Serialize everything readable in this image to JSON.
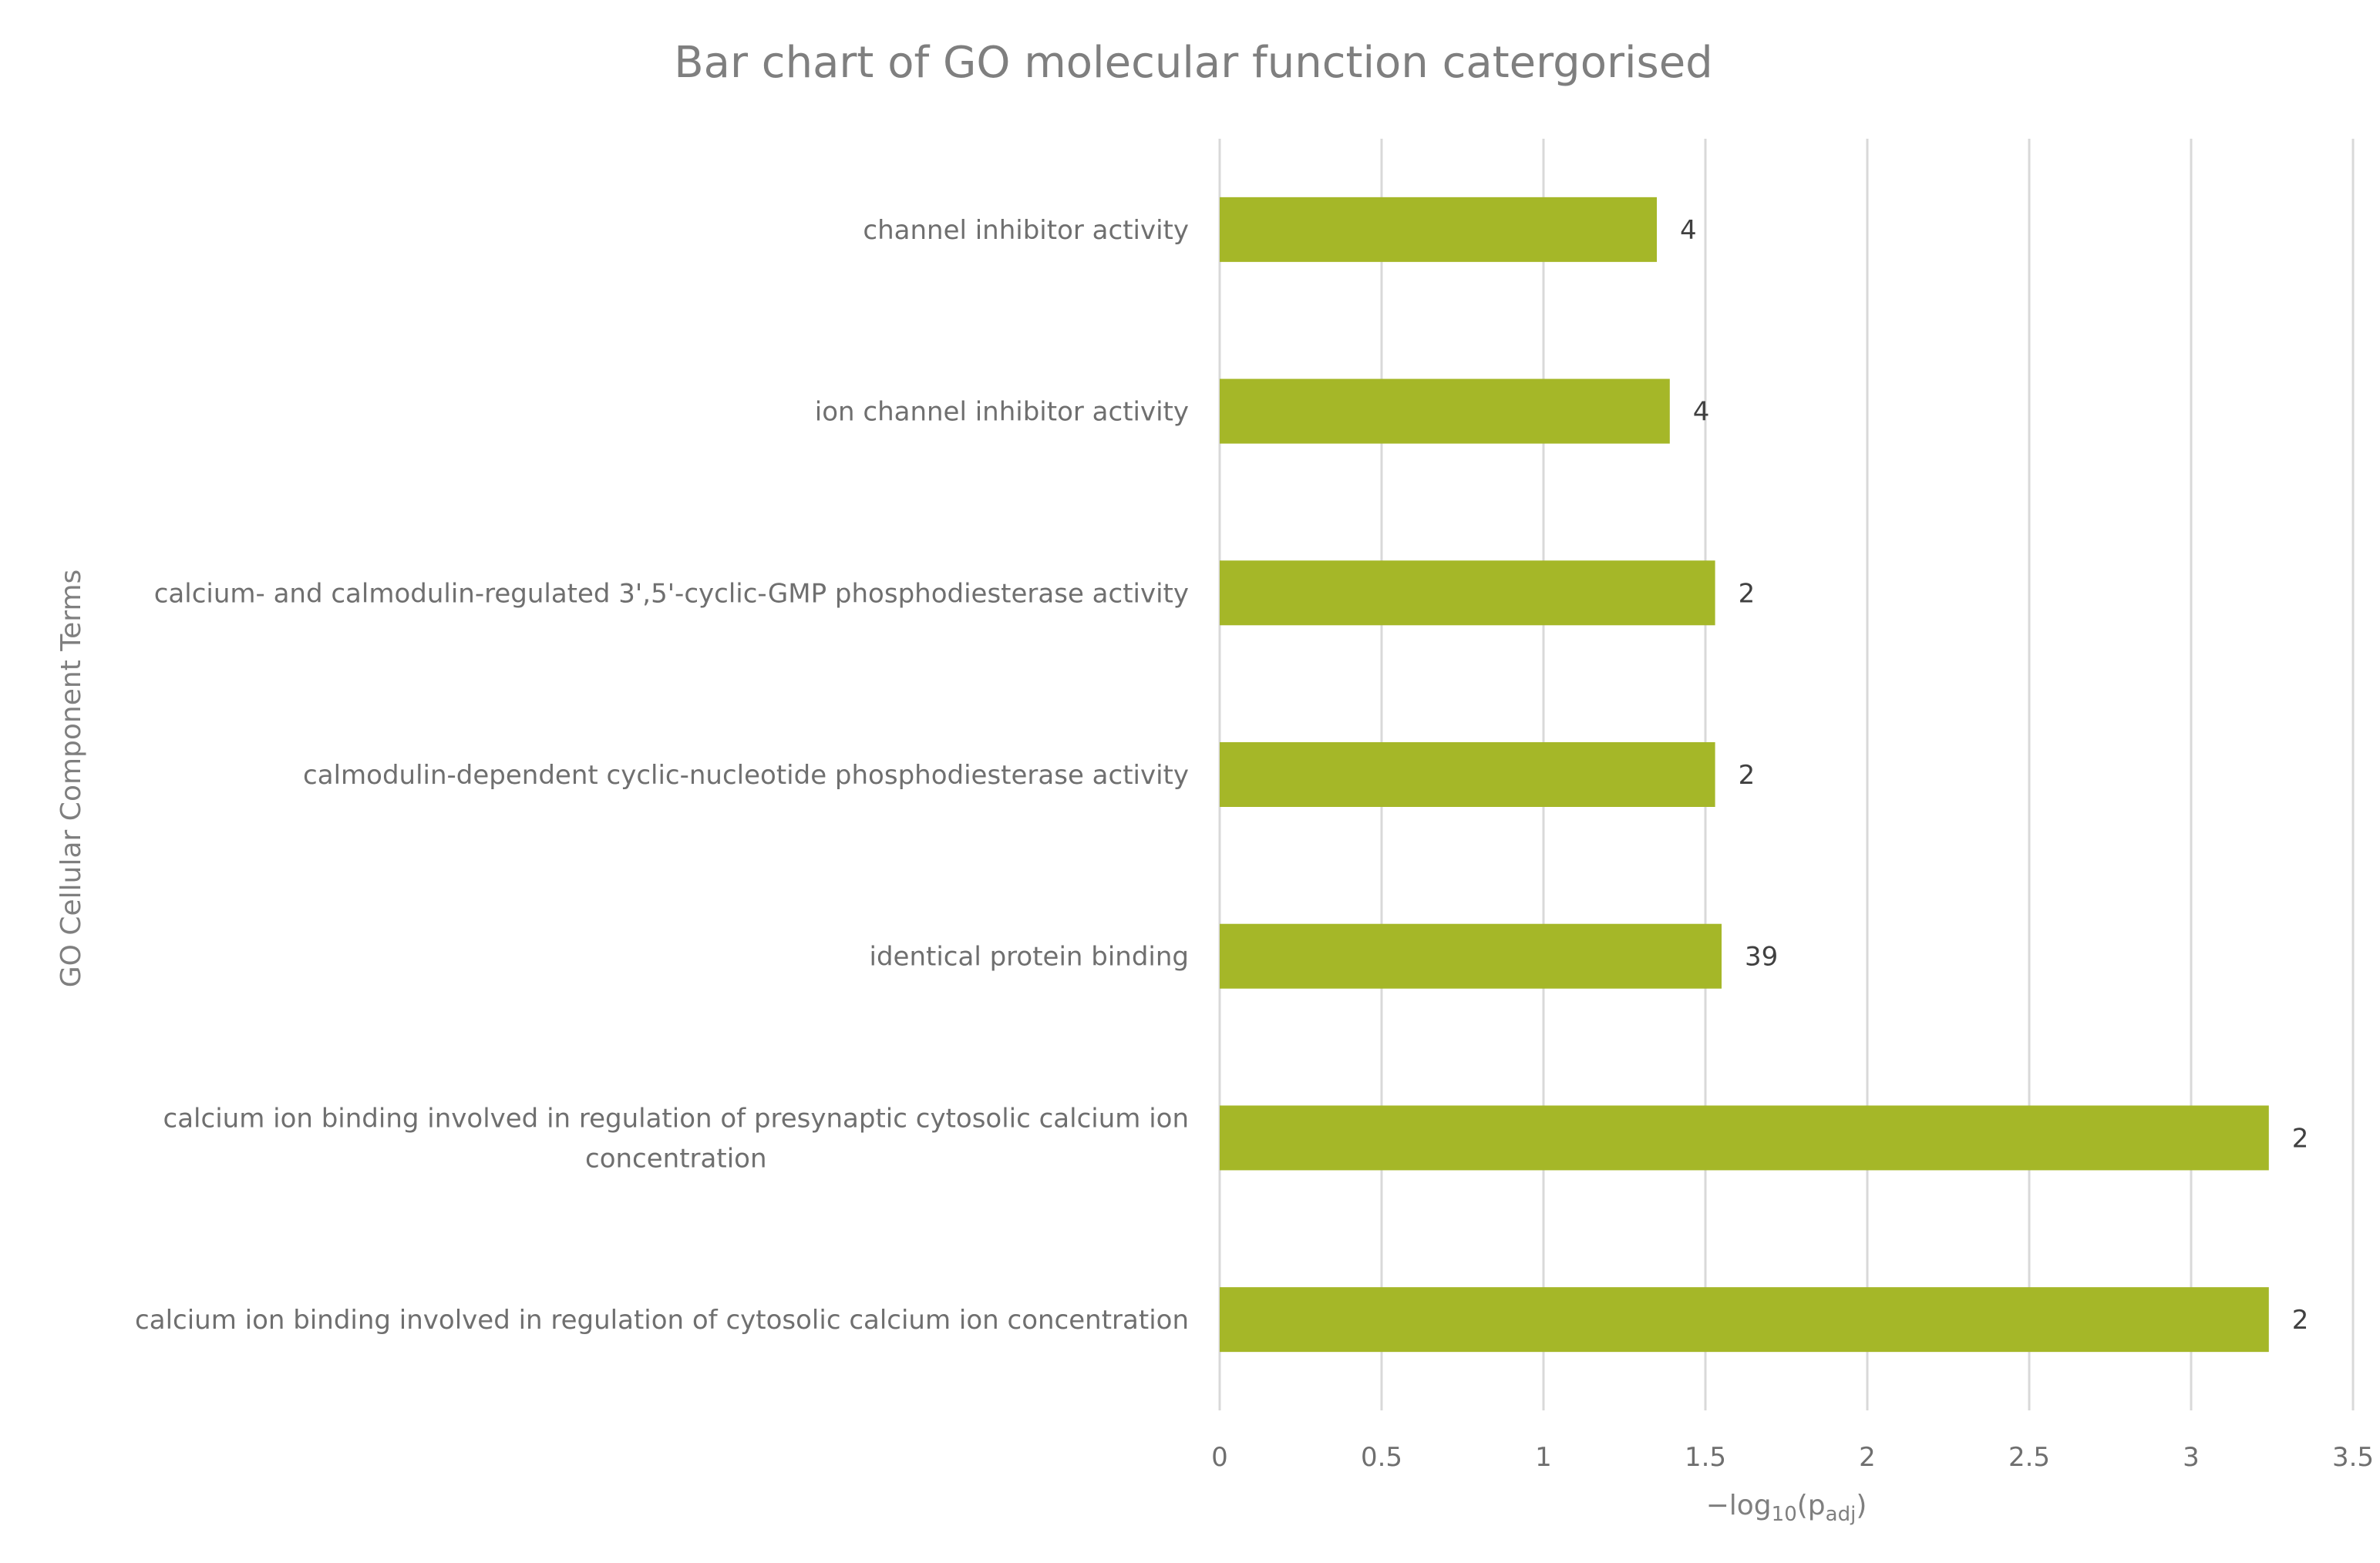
{
  "chart_data": {
    "type": "bar",
    "orientation": "horizontal",
    "title": "Bar chart of GO molecular function catergorised",
    "xlabel": {
      "prefix": "−log",
      "sub1": "10",
      "mid": "(p",
      "sub2": "adj",
      "suffix": ")"
    },
    "ylabel": "GO Cellular Component Terms",
    "xlim": [
      0,
      3.5
    ],
    "x_ticks": [
      "0",
      "0.5",
      "1",
      "1.5",
      "2",
      "2.5",
      "3",
      "3.5"
    ],
    "grid": true,
    "bar_color": "#a5b728",
    "categories": [
      [
        "channel inhibitor activity"
      ],
      [
        "ion channel inhibitor activity"
      ],
      [
        "calcium- and calmodulin-regulated 3',5'-cyclic-GMP phosphodiesterase activity"
      ],
      [
        "calmodulin-dependent cyclic-nucleotide phosphodiesterase activity"
      ],
      [
        "identical protein binding"
      ],
      [
        "calcium ion binding involved in regulation of presynaptic cytosolic calcium ion",
        "concentration"
      ],
      [
        "calcium ion binding involved in regulation of cytosolic calcium ion concentration"
      ]
    ],
    "values": [
      1.35,
      1.39,
      1.53,
      1.53,
      1.55,
      3.24,
      3.24
    ],
    "data_labels": [
      "4",
      "4",
      "2",
      "2",
      "39",
      "2",
      "2"
    ]
  }
}
